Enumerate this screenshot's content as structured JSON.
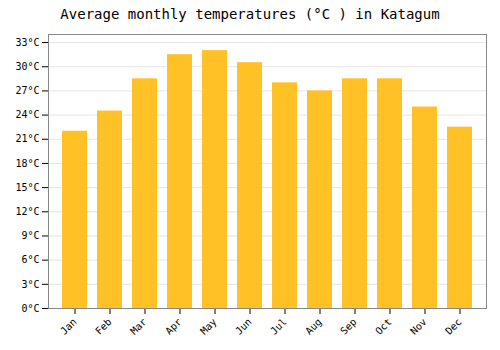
{
  "chart_data": {
    "type": "bar",
    "title": "Average monthly temperatures (°C ) in Katagum",
    "categories": [
      "Jan",
      "Feb",
      "Mar",
      "Apr",
      "May",
      "Jun",
      "Jul",
      "Aug",
      "Sep",
      "Oct",
      "Nov",
      "Dec"
    ],
    "values": [
      22.0,
      24.5,
      28.5,
      31.5,
      32.0,
      30.5,
      28.0,
      27.0,
      28.5,
      28.5,
      25.0,
      22.5
    ],
    "color": "#FFC125",
    "ylim": [
      0,
      34
    ],
    "yticks": [
      {
        "value": 0,
        "label": "0°C"
      },
      {
        "value": 3,
        "label": "3°C"
      },
      {
        "value": 6,
        "label": "6°C"
      },
      {
        "value": 9,
        "label": "9°C"
      },
      {
        "value": 12,
        "label": "12°C"
      },
      {
        "value": 15,
        "label": "15°C"
      },
      {
        "value": 18,
        "label": "18°C"
      },
      {
        "value": 21,
        "label": "21°C"
      },
      {
        "value": 24,
        "label": "24°C"
      },
      {
        "value": 27,
        "label": "27°C"
      },
      {
        "value": 30,
        "label": "30°C"
      },
      {
        "value": 33,
        "label": "33°C"
      }
    ],
    "grid": true
  }
}
